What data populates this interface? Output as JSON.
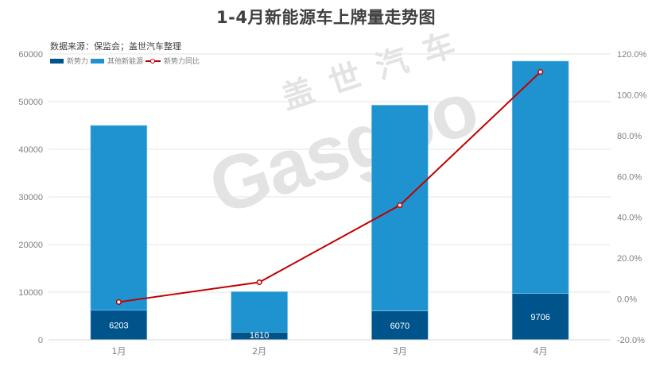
{
  "title": "1-4月新能源车上牌量走势图",
  "source": "数据来源：保监会；盖世汽车整理",
  "watermark": {
    "cn": "盖世汽车",
    "en": "Gasgoo"
  },
  "legend": [
    {
      "label": "新势力",
      "type": "bar",
      "color": "#00548c"
    },
    {
      "label": "其他新能源",
      "type": "bar",
      "color": "#1e93cf"
    },
    {
      "label": "新势力同比",
      "type": "line",
      "color": "#c00000"
    }
  ],
  "chart_data": {
    "type": "bar",
    "subtype": "stacked bar + line (dual axis)",
    "title": "1-4月新能源车上牌量走势图",
    "subtitle": "数据来源：保监会；盖世汽车整理",
    "categories": [
      "1月",
      "2月",
      "3月",
      "4月"
    ],
    "series": [
      {
        "name": "新势力",
        "axis": "left",
        "type": "bar",
        "color": "#00548c",
        "values": [
          6203,
          1610,
          6070,
          9706
        ],
        "labels": [
          "6203",
          "1610",
          "6070",
          "9706"
        ]
      },
      {
        "name": "其他新能源",
        "axis": "left",
        "type": "bar",
        "color": "#1e93cf",
        "values": [
          38800,
          8500,
          43200,
          48800
        ]
      },
      {
        "name": "新势力同比",
        "axis": "right",
        "type": "line",
        "color": "#c00000",
        "values": [
          -1.5,
          8.2,
          45.9,
          111.2
        ],
        "unit": "%"
      }
    ],
    "xlabel": "",
    "ylabel": "",
    "ylim": [
      0,
      60000
    ],
    "yticks": [
      "0",
      "10000",
      "20000",
      "30000",
      "40000",
      "50000",
      "60000"
    ],
    "y2lim": [
      -20,
      120
    ],
    "y2ticks": [
      "-20.0%",
      "0.0%",
      "20.0%",
      "40.0%",
      "60.0%",
      "80.0%",
      "100.0%",
      "120.0%"
    ],
    "grid": true,
    "legend_position": "top-left"
  }
}
